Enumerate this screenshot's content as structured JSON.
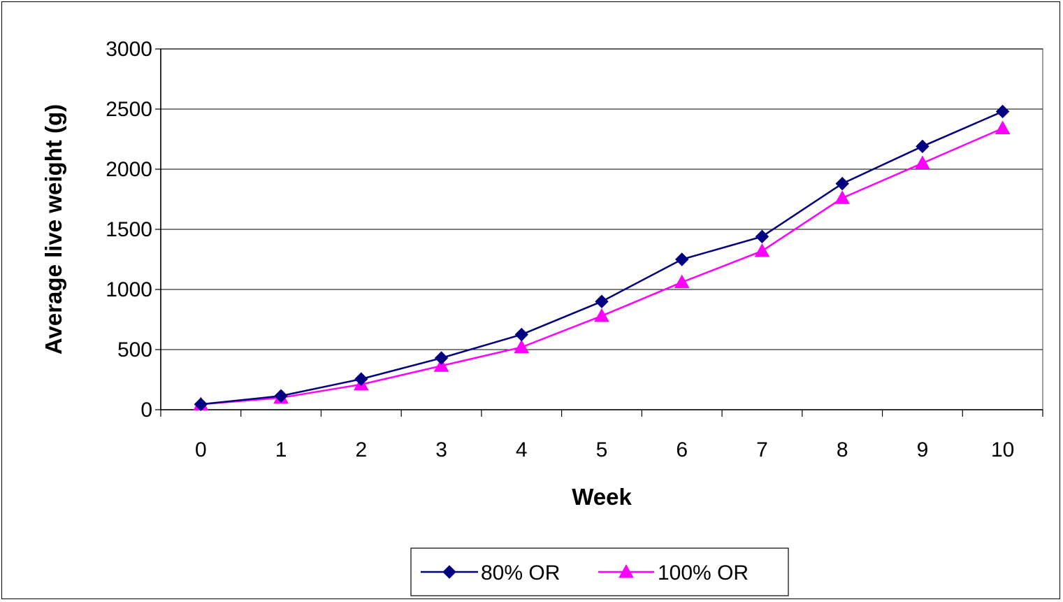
{
  "chart_data": {
    "type": "line",
    "title": "",
    "xlabel": "Week",
    "ylabel": "Average live weight (g)",
    "categories": [
      "0",
      "1",
      "2",
      "3",
      "4",
      "5",
      "6",
      "7",
      "8",
      "9",
      "10"
    ],
    "ylim": [
      0,
      3000
    ],
    "yticks": [
      "0",
      "500",
      "1000",
      "1500",
      "2000",
      "2500",
      "3000"
    ],
    "grid": true,
    "legend_position": "bottom",
    "series": [
      {
        "name": "80% OR",
        "color": "#000080",
        "marker": "diamond",
        "values": [
          45,
          115,
          255,
          430,
          625,
          900,
          1250,
          1440,
          1880,
          2190,
          2480
        ]
      },
      {
        "name": "100% OR",
        "color": "#FF00FF",
        "marker": "triangle",
        "values": [
          45,
          100,
          210,
          365,
          520,
          780,
          1060,
          1320,
          1760,
          2050,
          2340
        ]
      }
    ]
  }
}
